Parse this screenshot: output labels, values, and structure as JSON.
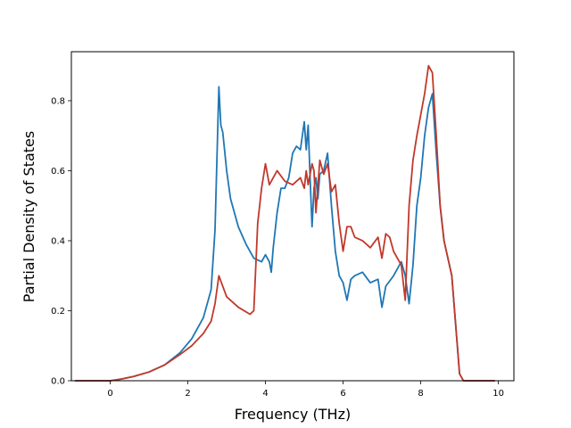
{
  "chart_data": {
    "type": "line",
    "title": "",
    "xlabel": "Frequency (THz)",
    "ylabel": "Partial Density of States",
    "xlim": [
      -1.0,
      10.4
    ],
    "ylim": [
      0.0,
      0.94
    ],
    "xticks": [
      0,
      2,
      4,
      6,
      8,
      10
    ],
    "yticks": [
      0.0,
      0.2,
      0.4,
      0.6,
      0.8
    ],
    "xtick_labels": [
      "0",
      "2",
      "4",
      "6",
      "8",
      "10"
    ],
    "ytick_labels": [
      "0.0",
      "0.2",
      "0.4",
      "0.6",
      "0.8"
    ],
    "grid": false,
    "legend": false,
    "series": [
      {
        "color": "#1f77b4",
        "x": [
          -0.9,
          0.0,
          0.3,
          0.6,
          1.0,
          1.4,
          1.8,
          2.1,
          2.4,
          2.6,
          2.7,
          2.8,
          2.85,
          2.9,
          3.0,
          3.1,
          3.3,
          3.5,
          3.7,
          3.9,
          4.0,
          4.1,
          4.15,
          4.2,
          4.3,
          4.4,
          4.5,
          4.6,
          4.7,
          4.8,
          4.9,
          5.0,
          5.05,
          5.1,
          5.15,
          5.2,
          5.25,
          5.3,
          5.35,
          5.4,
          5.5,
          5.6,
          5.7,
          5.8,
          5.9,
          6.0,
          6.1,
          6.2,
          6.3,
          6.5,
          6.7,
          6.9,
          7.0,
          7.1,
          7.3,
          7.5,
          7.6,
          7.7,
          7.8,
          7.9,
          8.0,
          8.1,
          8.2,
          8.3,
          8.4,
          8.5,
          8.6,
          8.8,
          9.0,
          9.1,
          9.4,
          9.9
        ],
        "y": [
          0.0,
          0.0,
          0.005,
          0.012,
          0.025,
          0.045,
          0.08,
          0.12,
          0.18,
          0.26,
          0.43,
          0.84,
          0.73,
          0.71,
          0.6,
          0.52,
          0.44,
          0.39,
          0.35,
          0.34,
          0.36,
          0.34,
          0.31,
          0.38,
          0.48,
          0.55,
          0.55,
          0.58,
          0.65,
          0.67,
          0.66,
          0.74,
          0.66,
          0.73,
          0.58,
          0.44,
          0.55,
          0.58,
          0.52,
          0.59,
          0.6,
          0.65,
          0.5,
          0.37,
          0.3,
          0.28,
          0.23,
          0.29,
          0.3,
          0.31,
          0.28,
          0.29,
          0.21,
          0.27,
          0.3,
          0.34,
          0.3,
          0.22,
          0.33,
          0.5,
          0.58,
          0.7,
          0.78,
          0.82,
          0.65,
          0.5,
          0.4,
          0.3,
          0.02,
          0.0,
          0.0,
          0.0
        ]
      },
      {
        "color": "#c0392b",
        "x": [
          -0.9,
          0.0,
          0.3,
          0.6,
          1.0,
          1.4,
          1.8,
          2.1,
          2.4,
          2.6,
          2.7,
          2.8,
          2.9,
          3.0,
          3.3,
          3.6,
          3.7,
          3.8,
          3.9,
          4.0,
          4.1,
          4.3,
          4.5,
          4.7,
          4.9,
          5.0,
          5.05,
          5.1,
          5.2,
          5.25,
          5.3,
          5.4,
          5.5,
          5.6,
          5.7,
          5.8,
          5.9,
          6.0,
          6.1,
          6.2,
          6.3,
          6.5,
          6.7,
          6.9,
          7.0,
          7.1,
          7.2,
          7.3,
          7.5,
          7.6,
          7.7,
          7.8,
          7.9,
          8.0,
          8.1,
          8.2,
          8.3,
          8.4,
          8.5,
          8.6,
          8.8,
          9.0,
          9.1,
          9.4,
          9.9
        ],
        "y": [
          0.0,
          0.0,
          0.005,
          0.012,
          0.025,
          0.045,
          0.075,
          0.1,
          0.135,
          0.17,
          0.22,
          0.3,
          0.27,
          0.24,
          0.21,
          0.19,
          0.2,
          0.45,
          0.55,
          0.62,
          0.56,
          0.6,
          0.57,
          0.56,
          0.58,
          0.55,
          0.6,
          0.56,
          0.62,
          0.6,
          0.48,
          0.63,
          0.59,
          0.62,
          0.54,
          0.56,
          0.45,
          0.37,
          0.44,
          0.44,
          0.41,
          0.4,
          0.38,
          0.41,
          0.35,
          0.42,
          0.41,
          0.37,
          0.33,
          0.23,
          0.5,
          0.63,
          0.7,
          0.76,
          0.82,
          0.9,
          0.88,
          0.7,
          0.5,
          0.4,
          0.3,
          0.02,
          0.0,
          0.0,
          0.0
        ]
      }
    ]
  }
}
